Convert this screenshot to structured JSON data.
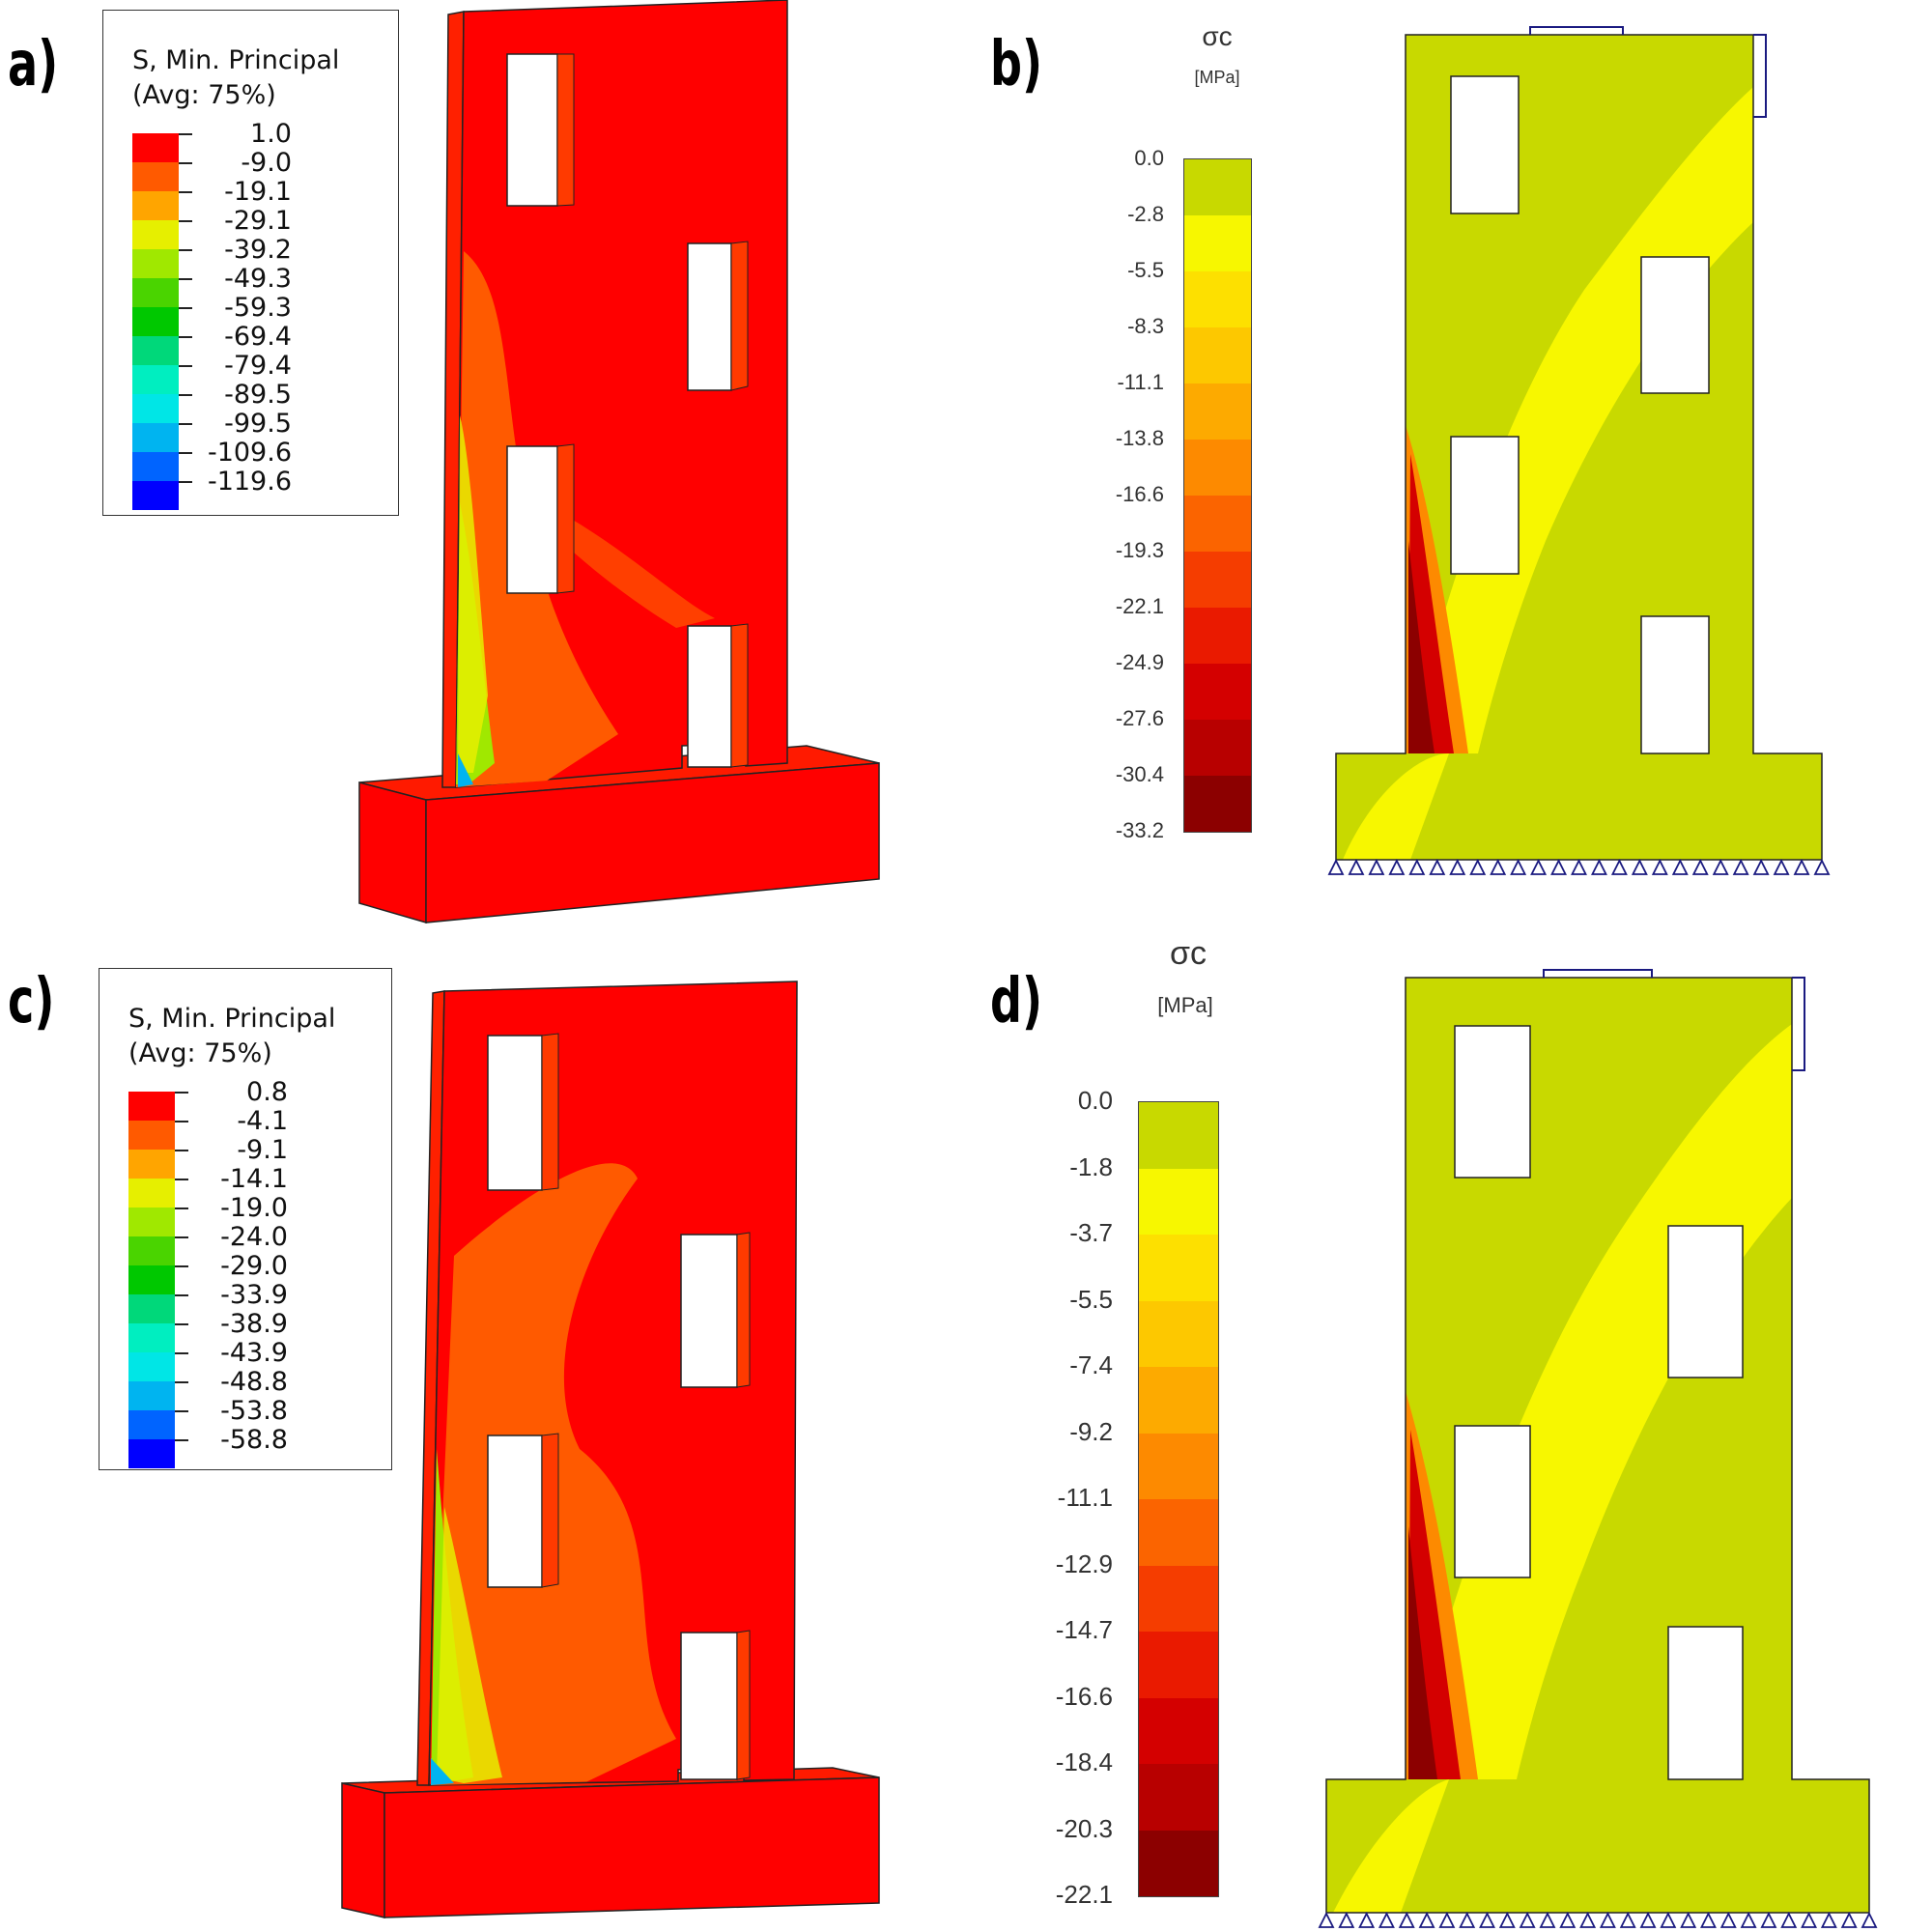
{
  "panels": {
    "a": {
      "letter": "a)"
    },
    "b": {
      "letter": "b)"
    },
    "c": {
      "letter": "c)"
    },
    "d": {
      "letter": "d)"
    }
  },
  "legend_a": {
    "title_line1": "S, Min. Principal",
    "title_line2": "(Avg: 75%)",
    "values": [
      "1.0",
      "-9.0",
      "-19.1",
      "-29.1",
      "-39.2",
      "-49.3",
      "-59.3",
      "-69.4",
      "-79.4",
      "-89.5",
      "-99.5",
      "-109.6",
      "-119.6"
    ]
  },
  "legend_c": {
    "title_line1": "S, Min. Principal",
    "title_line2": "(Avg: 75%)",
    "values": [
      "0.8",
      "-4.1",
      "-9.1",
      "-14.1",
      "-19.0",
      "-24.0",
      "-29.0",
      "-33.9",
      "-38.9",
      "-43.9",
      "-48.8",
      "-53.8",
      "-58.8"
    ]
  },
  "abaqus_colors": [
    "#ff0000",
    "#ff5a00",
    "#ffa500",
    "#e6ef00",
    "#a0e800",
    "#4ad400",
    "#00c800",
    "#00d87a",
    "#00eec0",
    "#00e6e6",
    "#00b4f0",
    "#0064ff",
    "#0000ff"
  ],
  "scale_b": {
    "symbol": "σc",
    "unit": "[MPa]",
    "values": [
      "0.0",
      "-2.8",
      "-5.5",
      "-8.3",
      "-11.1",
      "-13.8",
      "-16.6",
      "-19.3",
      "-22.1",
      "-24.9",
      "-27.6",
      "-30.4",
      "-33.2"
    ]
  },
  "scale_d": {
    "symbol": "σc",
    "unit": "[MPa]",
    "values": [
      "0.0",
      "-1.8",
      "-3.7",
      "-5.5",
      "-7.4",
      "-9.2",
      "-11.1",
      "-12.9",
      "-14.7",
      "-16.6",
      "-18.4",
      "-20.3",
      "-22.1"
    ]
  },
  "stress_colors": [
    "#c8d900",
    "#f7f700",
    "#fde000",
    "#fdc800",
    "#fdaa00",
    "#fd8a00",
    "#fb6400",
    "#f53d00",
    "#ea1a00",
    "#d40000",
    "#b80000",
    "#8c0000"
  ]
}
